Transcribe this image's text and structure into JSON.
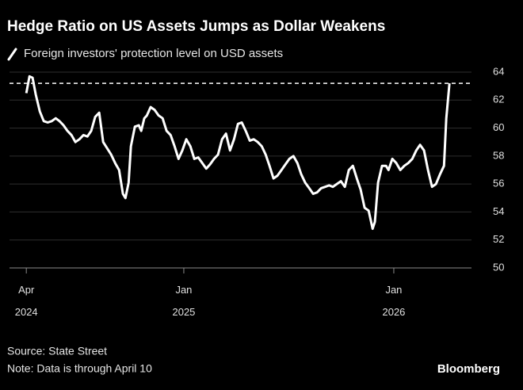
{
  "chart_data": {
    "type": "line",
    "title": "Hedge Ratio on US Assets Jumps as Dollar Weakens",
    "source": "Source: State Street",
    "note": "Note: Data is through April 10",
    "brand": "Bloomberg",
    "xlim": [
      2024.17,
      2026.37
    ],
    "xticks": [
      {
        "value": 2024.25,
        "label": "Apr 2024"
      },
      {
        "value": 2025.0,
        "label": "Jan 2025"
      },
      {
        "value": 2026.0,
        "label": "Jan 2026"
      }
    ],
    "ylim": [
      50,
      64
    ],
    "yticks": [
      50,
      52,
      54,
      56,
      58,
      60,
      62,
      64
    ],
    "grid": true,
    "reference_line": 63.2,
    "x": [
      2024.25,
      2024.265,
      2024.28,
      2024.295,
      2024.314,
      2024.333,
      2024.352,
      2024.371,
      2024.39,
      2024.408,
      2024.427,
      2024.446,
      2024.465,
      2024.484,
      2024.503,
      2024.522,
      2024.541,
      2024.559,
      2024.578,
      2024.597,
      2024.616,
      2024.654,
      2024.673,
      2024.692,
      2024.71,
      2024.722,
      2024.737,
      2024.748,
      2024.767,
      2024.786,
      2024.797,
      2024.812,
      2024.824,
      2024.842,
      2024.861,
      2024.88,
      2024.899,
      2024.918,
      2024.937,
      2024.956,
      2024.975,
      2024.993,
      2025.012,
      2025.031,
      2025.05,
      2025.069,
      2025.088,
      2025.107,
      2025.125,
      2025.144,
      2025.163,
      2025.182,
      2025.201,
      2025.22,
      2025.239,
      2025.258,
      2025.276,
      2025.295,
      2025.314,
      2025.333,
      2025.352,
      2025.371,
      2025.39,
      2025.408,
      2025.427,
      2025.446,
      2025.465,
      2025.484,
      2025.503,
      2025.522,
      2025.541,
      2025.559,
      2025.578,
      2025.597,
      2025.616,
      2025.635,
      2025.654,
      2025.673,
      2025.692,
      2025.71,
      2025.729,
      2025.748,
      2025.767,
      2025.786,
      2025.805,
      2025.824,
      2025.842,
      2025.861,
      2025.88,
      2025.899,
      2025.91,
      2025.925,
      2025.944,
      2025.963,
      2025.975,
      2025.993,
      2026.012,
      2026.031,
      2026.05,
      2026.069,
      2026.088,
      2026.107,
      2026.125,
      2026.144,
      2026.163,
      2026.182,
      2026.201,
      2026.22,
      2026.239,
      2026.25,
      2026.265
    ],
    "series": [
      {
        "name": "Foreign investors' protection level on USD assets",
        "color": "#ffffff",
        "values": [
          62.5,
          63.7,
          63.6,
          62.4,
          61.2,
          60.5,
          60.4,
          60.5,
          60.7,
          60.5,
          60.2,
          59.8,
          59.5,
          59.0,
          59.2,
          59.5,
          59.4,
          59.8,
          60.8,
          61.1,
          59.0,
          58.1,
          57.5,
          57.0,
          55.3,
          55.0,
          56.1,
          58.7,
          60.1,
          60.2,
          59.8,
          60.7,
          60.9,
          61.5,
          61.3,
          60.9,
          60.7,
          59.8,
          59.5,
          58.7,
          57.8,
          58.4,
          59.2,
          58.7,
          57.8,
          57.9,
          57.5,
          57.1,
          57.4,
          57.8,
          58.1,
          59.2,
          59.6,
          58.4,
          59.2,
          60.3,
          60.4,
          59.8,
          59.1,
          59.2,
          59.0,
          58.7,
          58.1,
          57.3,
          56.4,
          56.6,
          57.0,
          57.4,
          57.8,
          58.0,
          57.5,
          56.7,
          56.1,
          55.7,
          55.3,
          55.4,
          55.7,
          55.8,
          55.9,
          55.8,
          56.0,
          56.2,
          55.8,
          57.0,
          57.3,
          56.4,
          55.6,
          54.3,
          54.1,
          52.8,
          53.3,
          56.1,
          57.3,
          57.3,
          57.0,
          57.8,
          57.5,
          57.0,
          57.3,
          57.5,
          57.8,
          58.4,
          58.8,
          58.4,
          57.0,
          55.8,
          56.0,
          56.7,
          57.3,
          60.7,
          63.2
        ]
      }
    ]
  }
}
